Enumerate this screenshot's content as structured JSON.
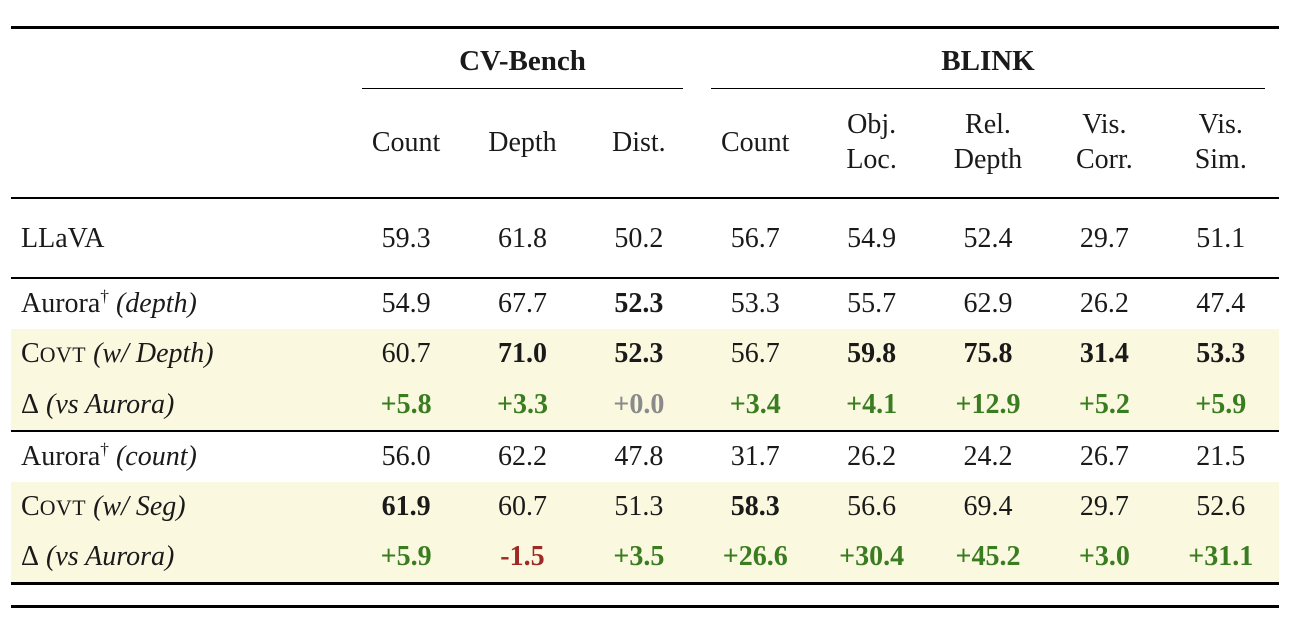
{
  "table": {
    "groups": [
      "CV-Bench",
      "BLINK"
    ],
    "columns": [
      "Count",
      "Depth",
      "Dist.",
      "Count",
      "Obj.\nLoc.",
      "Rel.\nDepth",
      "Vis.\nCorr.",
      "Vis.\nSim."
    ],
    "colors": {
      "green": "#3a7d20",
      "red": "#9e2a25",
      "gray": "#8a8a8a",
      "highlight": "#fbf8e0"
    },
    "rows": [
      {
        "label": {
          "main": "LLaVA",
          "sup": "",
          "note": "",
          "smallcaps": false
        },
        "highlight": false,
        "rule_after": true,
        "llava_spacing": true,
        "cells": [
          {
            "v": "59.3"
          },
          {
            "v": "61.8"
          },
          {
            "v": "50.2"
          },
          {
            "v": "56.7"
          },
          {
            "v": "54.9"
          },
          {
            "v": "52.4"
          },
          {
            "v": "29.7"
          },
          {
            "v": "51.1"
          }
        ]
      },
      {
        "label": {
          "main": "Aurora",
          "sup": "†",
          "note": "(depth)",
          "smallcaps": false
        },
        "highlight": false,
        "rule_after": false,
        "cells": [
          {
            "v": "54.9"
          },
          {
            "v": "67.7"
          },
          {
            "v": "52.3",
            "bold": true
          },
          {
            "v": "53.3"
          },
          {
            "v": "55.7"
          },
          {
            "v": "62.9"
          },
          {
            "v": "26.2"
          },
          {
            "v": "47.4"
          }
        ]
      },
      {
        "label": {
          "main": "CoVT",
          "sup": "",
          "note": "(w/ Depth)",
          "smallcaps": true
        },
        "highlight": true,
        "rule_after": false,
        "cells": [
          {
            "v": "60.7"
          },
          {
            "v": "71.0",
            "bold": true
          },
          {
            "v": "52.3",
            "bold": true
          },
          {
            "v": "56.7"
          },
          {
            "v": "59.8",
            "bold": true
          },
          {
            "v": "75.8",
            "bold": true
          },
          {
            "v": "31.4",
            "bold": true
          },
          {
            "v": "53.3",
            "bold": true
          }
        ]
      },
      {
        "label": {
          "main": "Δ",
          "sup": "",
          "note": "(vs Aurora)",
          "smallcaps": false
        },
        "highlight": true,
        "rule_after": true,
        "cells": [
          {
            "v": "+5.8",
            "tone": "green"
          },
          {
            "v": "+3.3",
            "tone": "green"
          },
          {
            "v": "+0.0",
            "tone": "gray"
          },
          {
            "v": "+3.4",
            "tone": "green"
          },
          {
            "v": "+4.1",
            "tone": "green"
          },
          {
            "v": "+12.9",
            "tone": "green"
          },
          {
            "v": "+5.2",
            "tone": "green"
          },
          {
            "v": "+5.9",
            "tone": "green"
          }
        ]
      },
      {
        "label": {
          "main": "Aurora",
          "sup": "†",
          "note": "(count)",
          "smallcaps": false
        },
        "highlight": false,
        "rule_after": false,
        "cells": [
          {
            "v": "56.0"
          },
          {
            "v": "62.2"
          },
          {
            "v": "47.8"
          },
          {
            "v": "31.7"
          },
          {
            "v": "26.2"
          },
          {
            "v": "24.2"
          },
          {
            "v": "26.7"
          },
          {
            "v": "21.5"
          }
        ]
      },
      {
        "label": {
          "main": "CoVT",
          "sup": "",
          "note": "(w/ Seg)",
          "smallcaps": true
        },
        "highlight": true,
        "rule_after": false,
        "cells": [
          {
            "v": "61.9",
            "bold": true
          },
          {
            "v": "60.7"
          },
          {
            "v": "51.3"
          },
          {
            "v": "58.3",
            "bold": true
          },
          {
            "v": "56.6"
          },
          {
            "v": "69.4"
          },
          {
            "v": "29.7"
          },
          {
            "v": "52.6"
          }
        ]
      },
      {
        "label": {
          "main": "Δ",
          "sup": "",
          "note": "(vs Aurora)",
          "smallcaps": false
        },
        "highlight": true,
        "rule_after": false,
        "cells": [
          {
            "v": "+5.9",
            "tone": "green"
          },
          {
            "v": "-1.5",
            "tone": "red"
          },
          {
            "v": "+3.5",
            "tone": "green"
          },
          {
            "v": "+26.6",
            "tone": "green"
          },
          {
            "v": "+30.4",
            "tone": "green"
          },
          {
            "v": "+45.2",
            "tone": "green"
          },
          {
            "v": "+3.0",
            "tone": "green"
          },
          {
            "v": "+31.1",
            "tone": "green"
          }
        ]
      }
    ]
  }
}
